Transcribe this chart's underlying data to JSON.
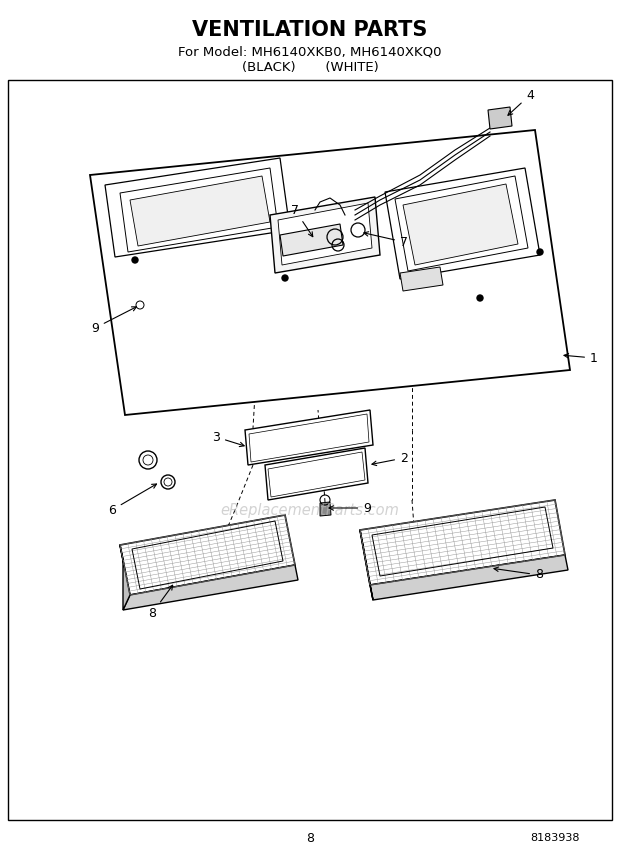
{
  "title": "VENTILATION PARTS",
  "subtitle1": "For Model: MH6140XKB0, MH6140XKQ0",
  "subtitle2": "(BLACK)       (WHITE)",
  "page_number": "8",
  "part_number": "8183938",
  "background_color": "#ffffff",
  "watermark_text": "eReplacementParts.com",
  "watermark_color": "#bbbbbb",
  "title_fontsize": 15,
  "subtitle_fontsize": 9.5,
  "label_fontsize": 9
}
